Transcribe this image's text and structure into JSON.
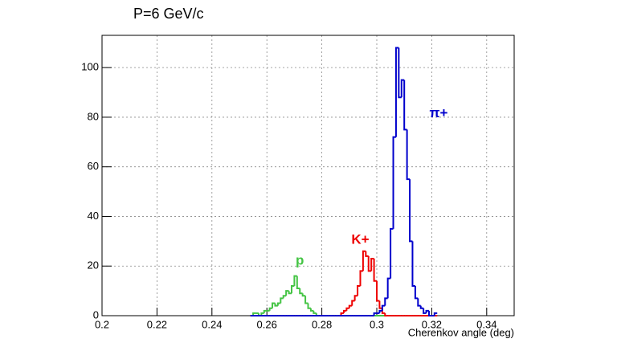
{
  "chart_data": {
    "type": "histogram",
    "title": "P=6 GeV/c",
    "x_label": "Cherenkov angle (deg)",
    "xlim": [
      0.2,
      0.35
    ],
    "ylim": [
      0,
      113
    ],
    "xticks": [
      0.2,
      0.22,
      0.24,
      0.26,
      0.28,
      0.3,
      0.32,
      0.34
    ],
    "yticks": [
      0,
      20,
      40,
      60,
      80,
      100
    ],
    "grid": true,
    "bins": [
      0.254,
      0.255,
      0.256,
      0.257,
      0.258,
      0.259,
      0.26,
      0.261,
      0.262,
      0.263,
      0.264,
      0.265,
      0.266,
      0.267,
      0.268,
      0.269,
      0.27,
      0.271,
      0.272,
      0.273,
      0.274,
      0.275,
      0.276,
      0.277,
      0.278,
      0.279,
      0.28,
      0.281,
      0.282,
      0.283,
      0.284,
      0.285,
      0.286,
      0.287,
      0.288,
      0.289,
      0.29,
      0.291,
      0.292,
      0.293,
      0.294,
      0.295,
      0.296,
      0.297,
      0.298,
      0.299,
      0.3,
      0.301,
      0.302,
      0.303,
      0.304,
      0.305,
      0.306,
      0.307,
      0.308,
      0.309,
      0.31,
      0.311,
      0.312,
      0.313,
      0.314,
      0.315,
      0.316,
      0.317,
      0.318,
      0.319,
      0.32,
      0.321,
      0.322
    ],
    "series": [
      {
        "name": "p",
        "color": "#44c444",
        "label_at": [
          0.272,
          22
        ],
        "values": [
          0,
          1,
          1,
          0,
          1,
          2,
          2,
          3,
          5,
          4,
          5,
          7,
          8,
          10,
          9,
          12,
          16,
          11,
          9,
          8,
          5,
          3,
          2,
          1,
          0,
          0,
          0,
          0,
          0,
          0,
          0,
          0,
          0,
          0,
          0,
          0,
          0,
          0,
          0,
          0,
          0,
          0,
          0,
          0,
          0,
          0,
          0,
          0,
          0,
          0,
          0,
          0,
          0,
          0,
          0,
          0,
          0,
          0,
          0,
          0,
          0,
          0,
          0,
          0,
          0,
          0,
          0,
          0
        ]
      },
      {
        "name": "K+",
        "color": "#ee0000",
        "label_at": [
          0.294,
          30.5
        ],
        "values": [
          0,
          0,
          0,
          0,
          0,
          0,
          0,
          0,
          0,
          0,
          0,
          0,
          0,
          0,
          0,
          0,
          0,
          0,
          0,
          0,
          0,
          0,
          0,
          0,
          0,
          0,
          0,
          0,
          0,
          0,
          0,
          0,
          0,
          1,
          2,
          3,
          4,
          6,
          8,
          12,
          18,
          26,
          24,
          18,
          23,
          14,
          6,
          3,
          1,
          0,
          0,
          0,
          0,
          0,
          0,
          0,
          0,
          0,
          0,
          0,
          0,
          0,
          0,
          0,
          0,
          0,
          0,
          0
        ]
      },
      {
        "name": "π+",
        "color": "#0000cc",
        "label_at": [
          0.3225,
          81.5
        ],
        "values": [
          0,
          0,
          0,
          0,
          0,
          0,
          0,
          0,
          0,
          0,
          0,
          0,
          0,
          0,
          0,
          0,
          0,
          0,
          0,
          0,
          0,
          0,
          0,
          0,
          0,
          0,
          0,
          0,
          0,
          0,
          0,
          0,
          0,
          0,
          0,
          0,
          0,
          0,
          0,
          0,
          0,
          0,
          0,
          0,
          0,
          1,
          1,
          2,
          4,
          7,
          15,
          35,
          72,
          108,
          88,
          95,
          75,
          55,
          30,
          12,
          7,
          4,
          3,
          1,
          2,
          0,
          0,
          1
        ]
      }
    ]
  }
}
